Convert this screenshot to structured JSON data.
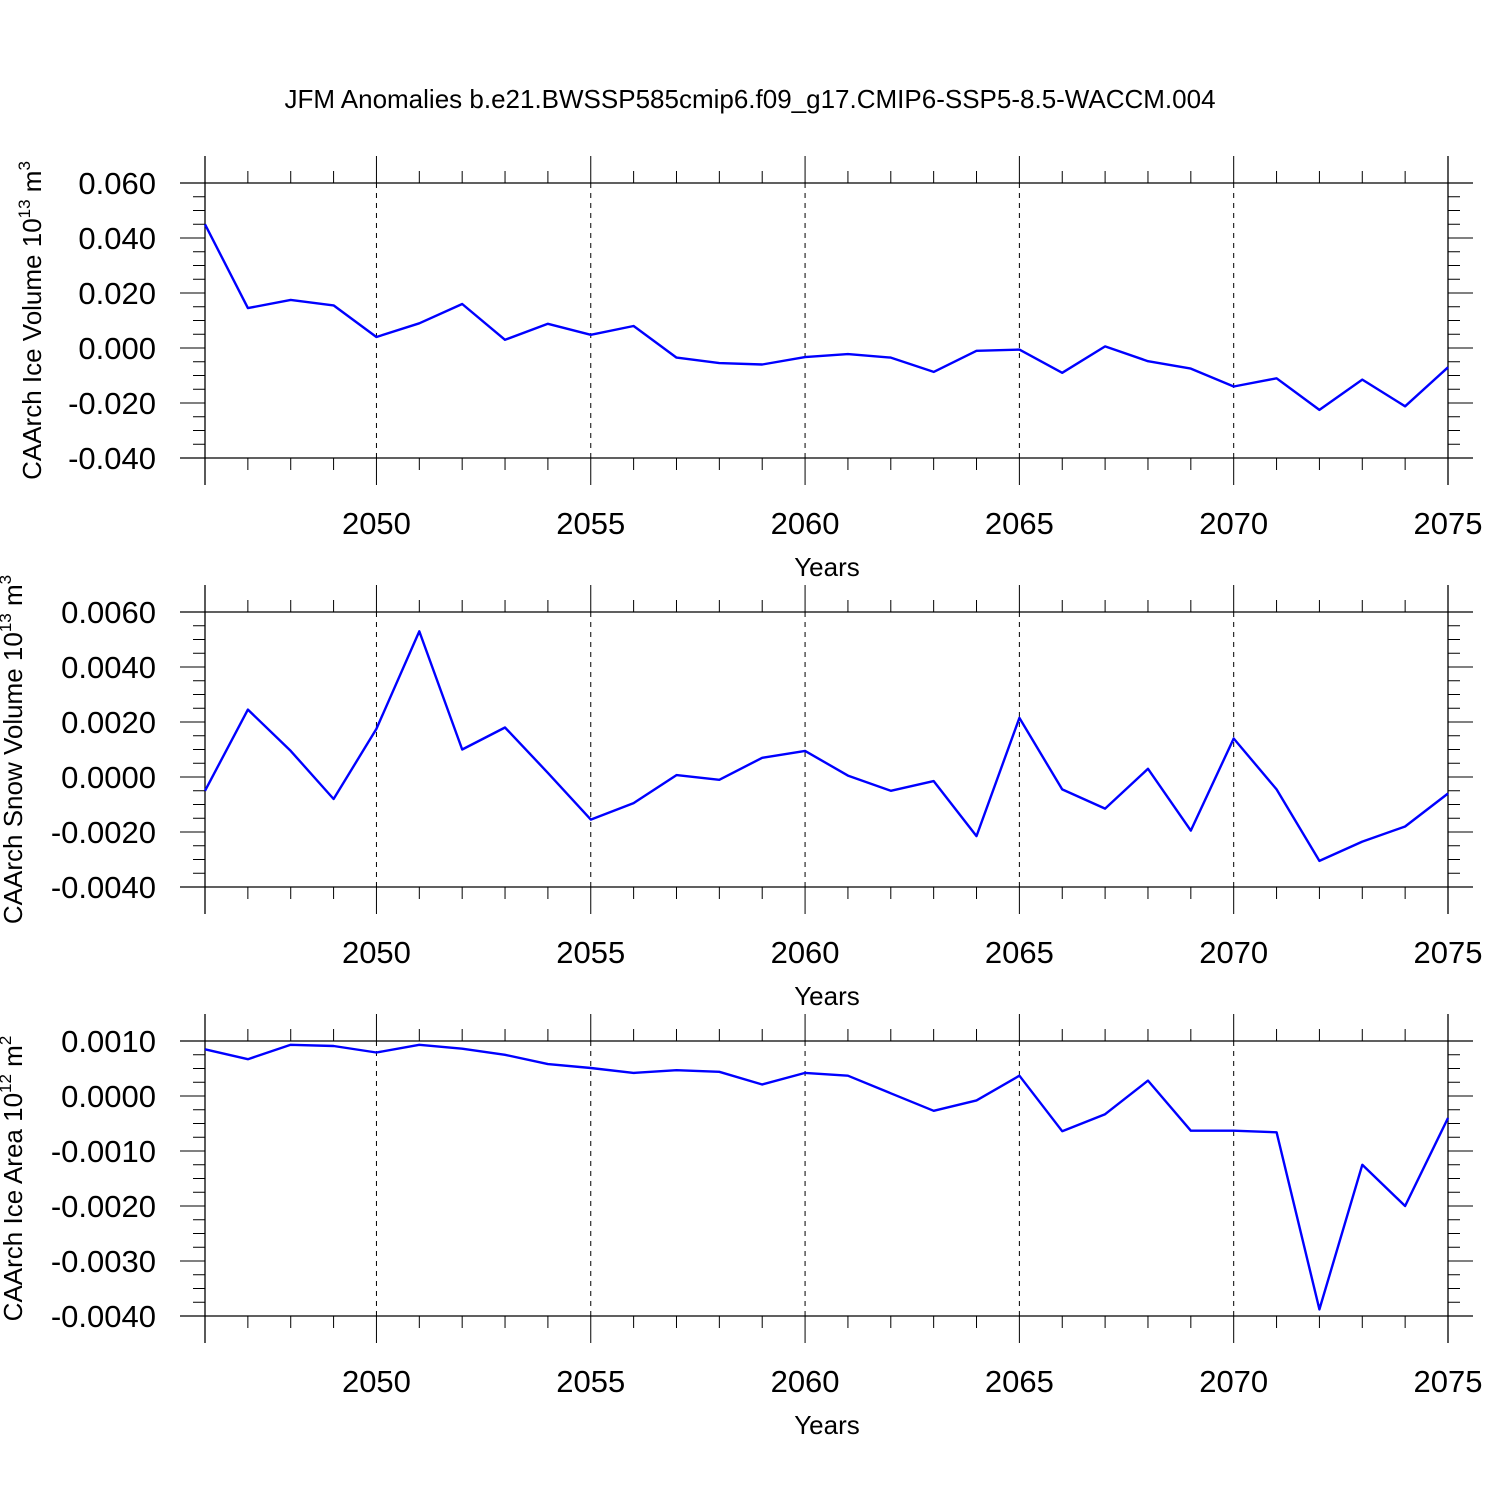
{
  "title": "JFM Anomalies b.e21.BWSSP585cmip6.f09_g17.CMIP6-SSP5-8.5-WACCM.004",
  "line_color": "#0000ff",
  "chart_data": [
    {
      "type": "line",
      "ylabel_main": "CAArch Ice Volume 10",
      "ylabel_sup": "13",
      "ylabel_unit": " m",
      "ylabel_unit_sup": "3",
      "xlabel": "Years",
      "xlim": [
        2046,
        2075
      ],
      "ylim": [
        -0.04,
        0.06
      ],
      "yticks": [
        -0.04,
        -0.02,
        0.0,
        0.02,
        0.04,
        0.06
      ],
      "ytick_labels": [
        "-0.040",
        "-0.020",
        "0.000",
        "0.020",
        "0.040",
        "0.060"
      ],
      "xticks": [
        2050,
        2055,
        2060,
        2065,
        2070,
        2075
      ],
      "xtick_labels": [
        "2050",
        "2055",
        "2060",
        "2065",
        "2070",
        "2075"
      ],
      "x": [
        2046,
        2047,
        2048,
        2049,
        2050,
        2051,
        2052,
        2053,
        2054,
        2055,
        2056,
        2057,
        2058,
        2059,
        2060,
        2061,
        2062,
        2063,
        2064,
        2065,
        2066,
        2067,
        2068,
        2069,
        2070,
        2071,
        2072,
        2073,
        2074,
        2075
      ],
      "values": [
        0.045,
        0.0145,
        0.0175,
        0.0155,
        0.004,
        0.009,
        0.016,
        0.003,
        0.0088,
        0.0048,
        0.008,
        -0.0035,
        -0.0055,
        -0.006,
        -0.0033,
        -0.0022,
        -0.0035,
        -0.0087,
        -0.001,
        -0.0006,
        -0.009,
        0.0006,
        -0.0048,
        -0.0075,
        -0.014,
        -0.011,
        -0.0225,
        -0.0115,
        -0.0212,
        -0.007
      ]
    },
    {
      "type": "line",
      "ylabel_main": "CAArch Snow Volume 10",
      "ylabel_sup": "13",
      "ylabel_unit": " m",
      "ylabel_unit_sup": "3",
      "xlabel": "Years",
      "xlim": [
        2046,
        2075
      ],
      "ylim": [
        -0.004,
        0.006
      ],
      "yticks": [
        -0.004,
        -0.002,
        0.0,
        0.002,
        0.004,
        0.006
      ],
      "ytick_labels": [
        "-0.0040",
        "-0.0020",
        "0.0000",
        "0.0020",
        "0.0040",
        "0.0060"
      ],
      "xticks": [
        2050,
        2055,
        2060,
        2065,
        2070,
        2075
      ],
      "xtick_labels": [
        "2050",
        "2055",
        "2060",
        "2065",
        "2070",
        "2075"
      ],
      "x": [
        2046,
        2047,
        2048,
        2049,
        2050,
        2051,
        2052,
        2053,
        2054,
        2055,
        2056,
        2057,
        2058,
        2059,
        2060,
        2061,
        2062,
        2063,
        2064,
        2065,
        2066,
        2067,
        2068,
        2069,
        2070,
        2071,
        2072,
        2073,
        2074,
        2075
      ],
      "values": [
        -0.0005,
        0.00245,
        0.00095,
        -0.0008,
        0.00175,
        0.0053,
        0.001,
        0.0018,
        0.00015,
        -0.00155,
        -0.00095,
        7e-05,
        -0.0001,
        0.0007,
        0.00095,
        5e-05,
        -0.0005,
        -0.00015,
        -0.00215,
        0.00215,
        -0.00045,
        -0.00115,
        0.0003,
        -0.00195,
        0.0014,
        -0.00045,
        -0.00305,
        -0.00235,
        -0.0018,
        -0.0006
      ]
    },
    {
      "type": "line",
      "ylabel_main": "CAArch Ice Area 10",
      "ylabel_sup": "12",
      "ylabel_unit": " m",
      "ylabel_unit_sup": "2",
      "xlabel": "Years",
      "xlim": [
        2046,
        2075
      ],
      "ylim": [
        -0.004,
        0.001
      ],
      "yticks": [
        -0.004,
        -0.003,
        -0.002,
        -0.001,
        0.0,
        0.001
      ],
      "ytick_labels": [
        "-0.0040",
        "-0.0030",
        "-0.0020",
        "-0.0010",
        "0.0000",
        "0.0010"
      ],
      "xticks": [
        2050,
        2055,
        2060,
        2065,
        2070,
        2075
      ],
      "xtick_labels": [
        "2050",
        "2055",
        "2060",
        "2065",
        "2070",
        "2075"
      ],
      "x": [
        2046,
        2047,
        2048,
        2049,
        2050,
        2051,
        2052,
        2053,
        2054,
        2055,
        2056,
        2057,
        2058,
        2059,
        2060,
        2061,
        2062,
        2063,
        2064,
        2065,
        2066,
        2067,
        2068,
        2069,
        2070,
        2071,
        2072,
        2073,
        2074,
        2075
      ],
      "values": [
        0.00085,
        0.00067,
        0.00093,
        0.00091,
        0.00079,
        0.00093,
        0.00086,
        0.00075,
        0.00058,
        0.00051,
        0.00042,
        0.00047,
        0.00044,
        0.00021,
        0.00042,
        0.00037,
        5e-05,
        -0.00027,
        -8e-05,
        0.00037,
        -0.00064,
        -0.00033,
        0.00028,
        -0.00063,
        -0.00063,
        -0.00066,
        -0.00388,
        -0.00125,
        -0.002,
        -0.0004
      ]
    }
  ]
}
